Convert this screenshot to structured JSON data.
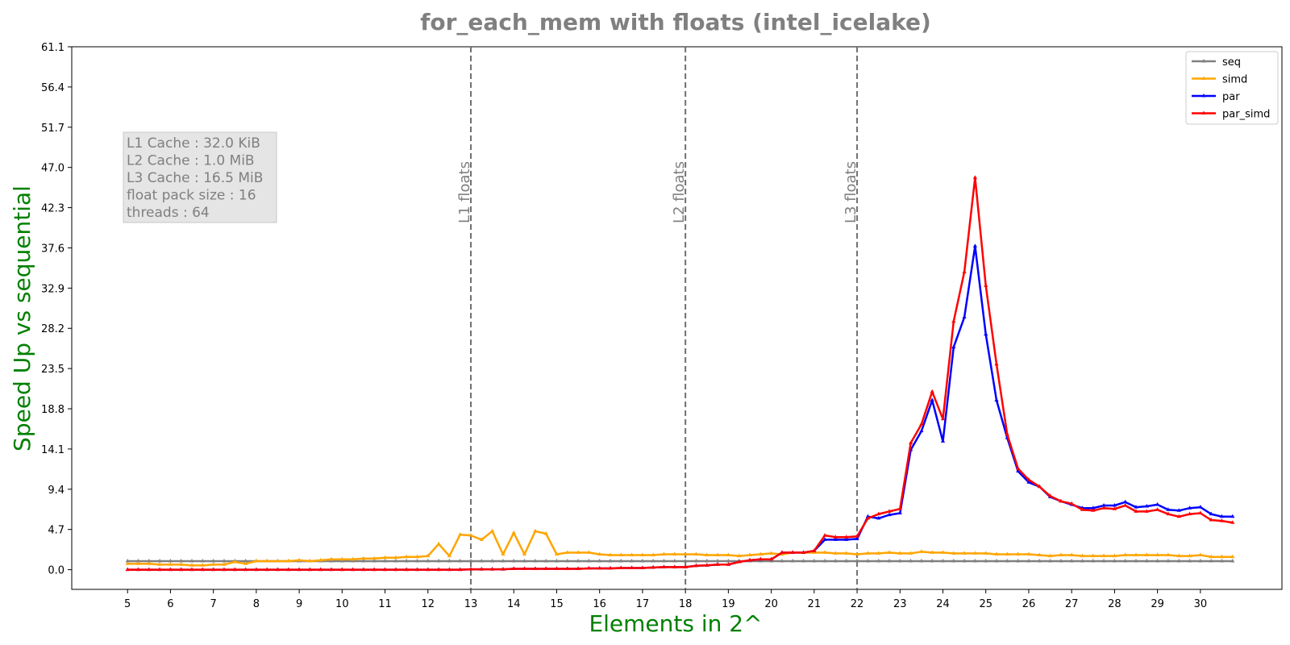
{
  "chart_data": {
    "type": "line",
    "title": "for_each_mem with floats  (intel_icelake)",
    "xlabel": "Elements in 2^",
    "ylabel": "Speed Up vs sequential",
    "xlim": [
      3.7,
      31.9
    ],
    "ylim": [
      -2.3,
      61.1
    ],
    "xticks": [
      5,
      6,
      7,
      8,
      9,
      10,
      11,
      12,
      13,
      14,
      15,
      16,
      17,
      18,
      19,
      20,
      21,
      22,
      23,
      24,
      25,
      26,
      27,
      28,
      29,
      30
    ],
    "yticks": [
      "0.0",
      "4.7",
      "9.4",
      "14.1",
      "18.8",
      "23.5",
      "28.2",
      "32.9",
      "37.6",
      "42.3",
      "47.0",
      "51.7",
      "56.4",
      "61.1"
    ],
    "grid": false,
    "legend_position": "top-right",
    "vlines": [
      {
        "x": 13,
        "label": "L1 floats"
      },
      {
        "x": 18,
        "label": "L2 floats"
      },
      {
        "x": 22,
        "label": "L3 floats"
      }
    ],
    "info_box": [
      "L1 Cache : 32.0 KiB",
      "L2 Cache : 1.0 MiB",
      "L3 Cache : 16.5 MiB",
      "float pack size : 16",
      "threads : 64"
    ],
    "series": [
      {
        "name": "seq",
        "color": "#808080",
        "x": [
          5,
          30.75
        ],
        "values": [
          1.0,
          1.0
        ]
      },
      {
        "name": "simd",
        "color": "#ffa500",
        "x": [
          5,
          5.25,
          5.5,
          5.75,
          6,
          6.25,
          6.5,
          6.75,
          7,
          7.25,
          7.5,
          7.75,
          8,
          8.25,
          8.5,
          8.75,
          9,
          9.25,
          9.5,
          9.75,
          10,
          10.25,
          10.5,
          10.75,
          11,
          11.25,
          11.5,
          11.75,
          12,
          12.25,
          12.5,
          12.75,
          13,
          13.25,
          13.5,
          13.75,
          14,
          14.25,
          14.5,
          14.75,
          15,
          15.25,
          15.5,
          15.75,
          16,
          16.25,
          16.5,
          16.75,
          17,
          17.25,
          17.5,
          17.75,
          18,
          18.25,
          18.5,
          18.75,
          19,
          19.25,
          19.5,
          19.75,
          20,
          20.25,
          20.5,
          20.75,
          21,
          21.25,
          21.5,
          21.75,
          22,
          22.25,
          22.5,
          22.75,
          23,
          23.25,
          23.5,
          23.75,
          24,
          24.25,
          24.5,
          24.75,
          25,
          25.25,
          25.5,
          25.75,
          26,
          26.25,
          26.5,
          26.75,
          27,
          27.25,
          27.5,
          27.75,
          28,
          28.25,
          28.5,
          28.75,
          29,
          29.25,
          29.5,
          29.75,
          30,
          30.25,
          30.5,
          30.75
        ],
        "values": [
          0.7,
          0.7,
          0.7,
          0.6,
          0.6,
          0.6,
          0.5,
          0.5,
          0.6,
          0.6,
          0.9,
          0.7,
          1.0,
          1.0,
          1.0,
          1.0,
          1.1,
          1.0,
          1.1,
          1.2,
          1.2,
          1.2,
          1.3,
          1.3,
          1.4,
          1.4,
          1.5,
          1.5,
          1.6,
          3.0,
          1.6,
          4.1,
          4.0,
          3.5,
          4.5,
          1.8,
          4.3,
          1.8,
          4.5,
          4.2,
          1.8,
          2.0,
          2.0,
          2.0,
          1.8,
          1.7,
          1.7,
          1.7,
          1.7,
          1.7,
          1.8,
          1.8,
          1.8,
          1.8,
          1.7,
          1.7,
          1.7,
          1.6,
          1.7,
          1.8,
          1.9,
          1.8,
          2.0,
          2.0,
          2.0,
          2.0,
          1.9,
          1.9,
          1.8,
          1.9,
          1.9,
          2.0,
          1.9,
          1.9,
          2.1,
          2.0,
          2.0,
          1.9,
          1.9,
          1.9,
          1.9,
          1.8,
          1.8,
          1.8,
          1.8,
          1.7,
          1.6,
          1.7,
          1.7,
          1.6,
          1.6,
          1.6,
          1.6,
          1.7,
          1.7,
          1.7,
          1.7,
          1.7,
          1.6,
          1.6,
          1.7,
          1.5,
          1.5,
          1.5
        ]
      },
      {
        "name": "par",
        "color": "#0000ff",
        "x": [
          5,
          5.25,
          5.5,
          5.75,
          6,
          6.25,
          6.5,
          6.75,
          7,
          7.25,
          7.5,
          7.75,
          8,
          8.25,
          8.5,
          8.75,
          9,
          9.25,
          9.5,
          9.75,
          10,
          10.25,
          10.5,
          10.75,
          11,
          11.25,
          11.5,
          11.75,
          12,
          12.25,
          12.5,
          12.75,
          13,
          13.25,
          13.5,
          13.75,
          14,
          14.25,
          14.5,
          14.75,
          15,
          15.25,
          15.5,
          15.75,
          16,
          16.25,
          16.5,
          16.75,
          17,
          17.25,
          17.5,
          17.75,
          18,
          18.25,
          18.5,
          18.75,
          19,
          19.25,
          19.5,
          19.75,
          20,
          20.25,
          20.5,
          20.75,
          21,
          21.25,
          21.5,
          21.75,
          22,
          22.25,
          22.5,
          22.75,
          23,
          23.25,
          23.5,
          23.75,
          24,
          24.25,
          24.5,
          24.75,
          25,
          25.25,
          25.5,
          25.75,
          26,
          26.25,
          26.5,
          26.75,
          27,
          27.25,
          27.5,
          27.75,
          28,
          28.25,
          28.5,
          28.75,
          29,
          29.25,
          29.5,
          29.75,
          30,
          30.25,
          30.5,
          30.75
        ],
        "values": [
          0.0,
          0.0,
          0.0,
          0.0,
          0.0,
          0.0,
          0.0,
          0.0,
          0.0,
          0.0,
          0.0,
          0.0,
          0.0,
          0.0,
          0.0,
          0.0,
          0.0,
          0.0,
          0.0,
          0.0,
          0.0,
          0.0,
          0.0,
          0.0,
          0.0,
          0.0,
          0.0,
          0.0,
          0.0,
          0.0,
          0.0,
          0.0,
          0.05,
          0.05,
          0.05,
          0.05,
          0.1,
          0.1,
          0.1,
          0.1,
          0.1,
          0.1,
          0.1,
          0.15,
          0.15,
          0.15,
          0.2,
          0.2,
          0.2,
          0.25,
          0.3,
          0.3,
          0.3,
          0.45,
          0.5,
          0.6,
          0.6,
          0.9,
          1.1,
          1.2,
          1.2,
          2.0,
          2.0,
          2.0,
          2.2,
          3.5,
          3.5,
          3.5,
          3.6,
          6.2,
          6.0,
          6.4,
          6.6,
          14.0,
          16.2,
          19.8,
          15.0,
          26.0,
          29.5,
          37.8,
          27.5,
          19.8,
          15.4,
          11.5,
          10.2,
          9.7,
          8.5,
          8.0,
          7.6,
          7.2,
          7.2,
          7.5,
          7.5,
          7.9,
          7.3,
          7.4,
          7.6,
          7.0,
          6.9,
          7.2,
          7.3,
          6.5,
          6.2,
          6.2
        ]
      },
      {
        "name": "par_simd",
        "color": "#ff0000",
        "x": [
          5,
          5.25,
          5.5,
          5.75,
          6,
          6.25,
          6.5,
          6.75,
          7,
          7.25,
          7.5,
          7.75,
          8,
          8.25,
          8.5,
          8.75,
          9,
          9.25,
          9.5,
          9.75,
          10,
          10.25,
          10.5,
          10.75,
          11,
          11.25,
          11.5,
          11.75,
          12,
          12.25,
          12.5,
          12.75,
          13,
          13.25,
          13.5,
          13.75,
          14,
          14.25,
          14.5,
          14.75,
          15,
          15.25,
          15.5,
          15.75,
          16,
          16.25,
          16.5,
          16.75,
          17,
          17.25,
          17.5,
          17.75,
          18,
          18.25,
          18.5,
          18.75,
          19,
          19.25,
          19.5,
          19.75,
          20,
          20.25,
          20.5,
          20.75,
          21,
          21.25,
          21.5,
          21.75,
          22,
          22.25,
          22.5,
          22.75,
          23,
          23.25,
          23.5,
          23.75,
          24,
          24.25,
          24.5,
          24.75,
          25,
          25.25,
          25.5,
          25.75,
          26,
          26.25,
          26.5,
          26.75,
          27,
          27.25,
          27.5,
          27.75,
          28,
          28.25,
          28.5,
          28.75,
          29,
          29.25,
          29.5,
          29.75,
          30,
          30.25,
          30.5,
          30.75
        ],
        "values": [
          0.0,
          0.0,
          0.0,
          0.0,
          0.0,
          0.0,
          0.0,
          0.0,
          0.0,
          0.0,
          0.0,
          0.0,
          0.0,
          0.0,
          0.0,
          0.0,
          0.0,
          0.0,
          0.0,
          0.0,
          0.0,
          0.0,
          0.0,
          0.0,
          0.0,
          0.0,
          0.0,
          0.0,
          0.0,
          0.0,
          0.0,
          0.0,
          0.05,
          0.05,
          0.05,
          0.05,
          0.1,
          0.1,
          0.1,
          0.1,
          0.1,
          0.1,
          0.1,
          0.15,
          0.15,
          0.15,
          0.2,
          0.2,
          0.2,
          0.25,
          0.3,
          0.3,
          0.3,
          0.45,
          0.5,
          0.6,
          0.6,
          0.9,
          1.1,
          1.2,
          1.2,
          2.0,
          2.0,
          2.0,
          2.2,
          4.0,
          3.8,
          3.8,
          3.9,
          6.0,
          6.5,
          6.8,
          7.1,
          14.8,
          17.0,
          20.8,
          17.6,
          29.0,
          34.8,
          45.8,
          33.2,
          24.0,
          15.8,
          11.8,
          10.5,
          9.7,
          8.6,
          8.0,
          7.7,
          7.0,
          6.9,
          7.2,
          7.1,
          7.5,
          6.8,
          6.8,
          7.0,
          6.5,
          6.2,
          6.5,
          6.6,
          5.8,
          5.7,
          5.5
        ]
      }
    ]
  }
}
